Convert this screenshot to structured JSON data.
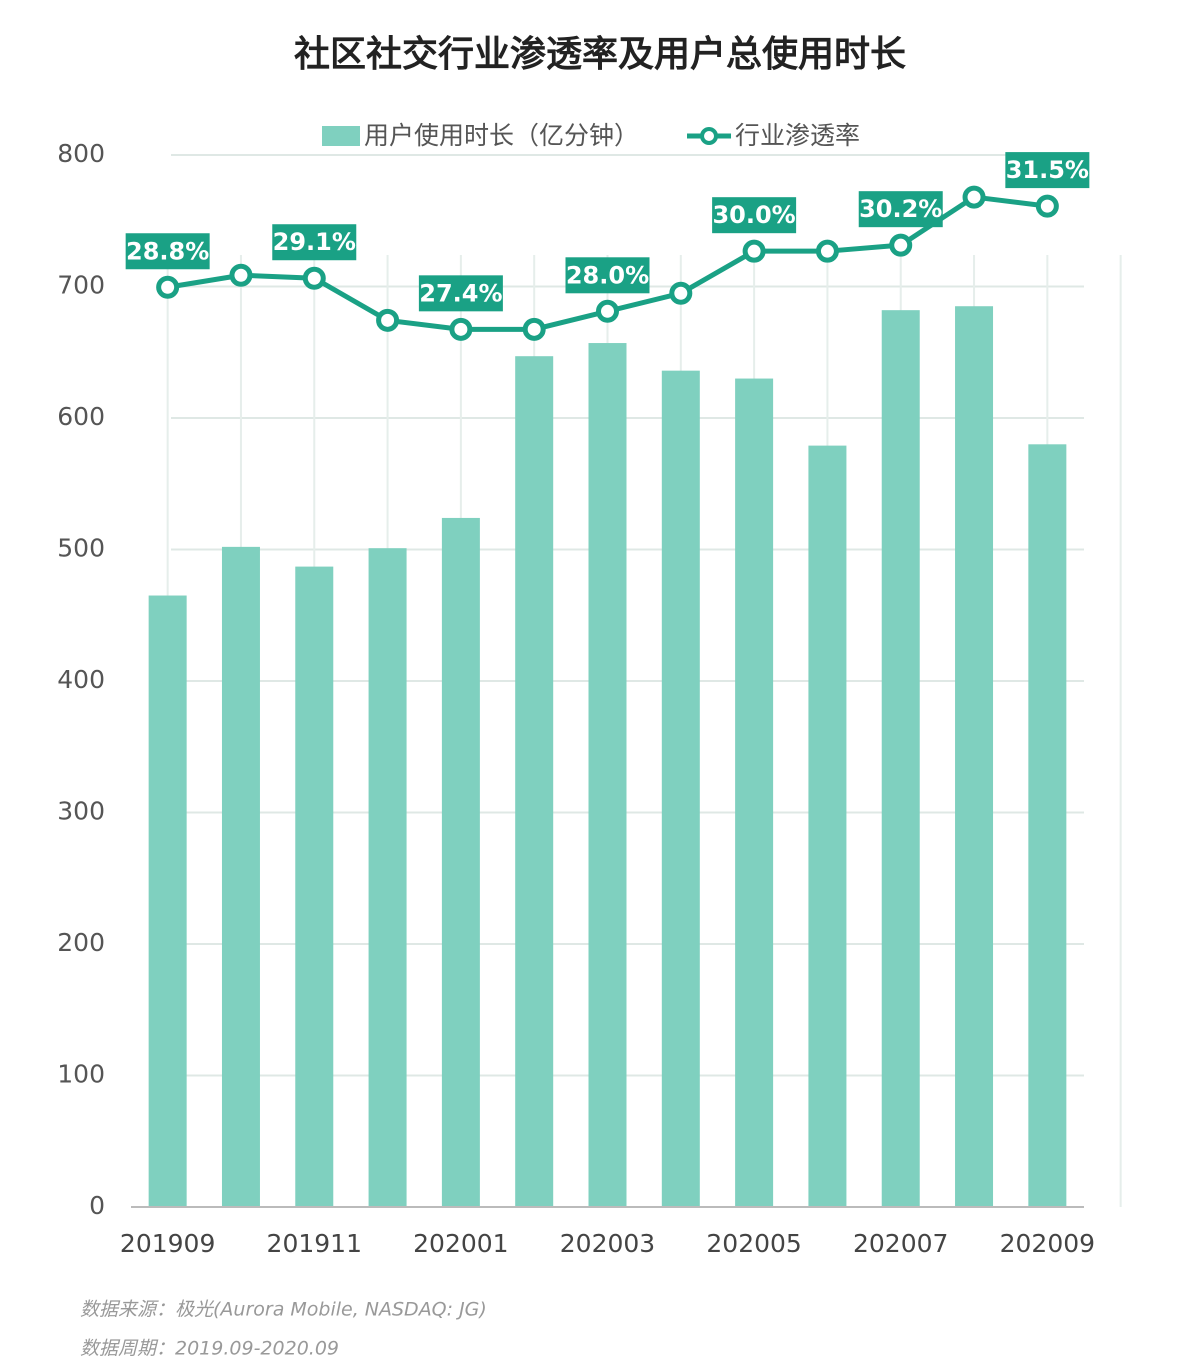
{
  "chart_data": {
    "type": "bar_line",
    "title": "社区社交行业渗透率及用户总使用时长",
    "categories": [
      "201909",
      null,
      "201911",
      null,
      "202001",
      null,
      "202003",
      null,
      "202005",
      null,
      "202007",
      null,
      "202009"
    ],
    "series": [
      {
        "name": "用户使用时长（亿分钟）",
        "type": "bar",
        "color": "#7fd0bf",
        "values": [
          465,
          502,
          487,
          501,
          524,
          647,
          657,
          636,
          630,
          579,
          682,
          685,
          580
        ]
      },
      {
        "name": "行业渗透率",
        "type": "line",
        "axis": "y2",
        "color": "#1aa185",
        "values": [
          28.8,
          29.2,
          29.1,
          27.7,
          27.4,
          27.4,
          28.0,
          28.6,
          30.0,
          30.0,
          30.2,
          31.8,
          31.5
        ],
        "value_labels": [
          "28.8%",
          null,
          "29.1%",
          null,
          "27.4%",
          null,
          "28.0%",
          null,
          "30.0%",
          null,
          "30.2%",
          null,
          "31.5%"
        ]
      }
    ],
    "ylim": [
      0,
      800
    ],
    "yticks": [
      0,
      100,
      200,
      300,
      400,
      500,
      600,
      700,
      800
    ],
    "y2lim": [
      -1.8,
      33.2
    ],
    "grid": true,
    "legend": "top",
    "notes": [
      "数据来源：极光(Aurora Mobile, NASDAQ: JG)",
      "数据周期：2019.09-2020.09"
    ]
  }
}
